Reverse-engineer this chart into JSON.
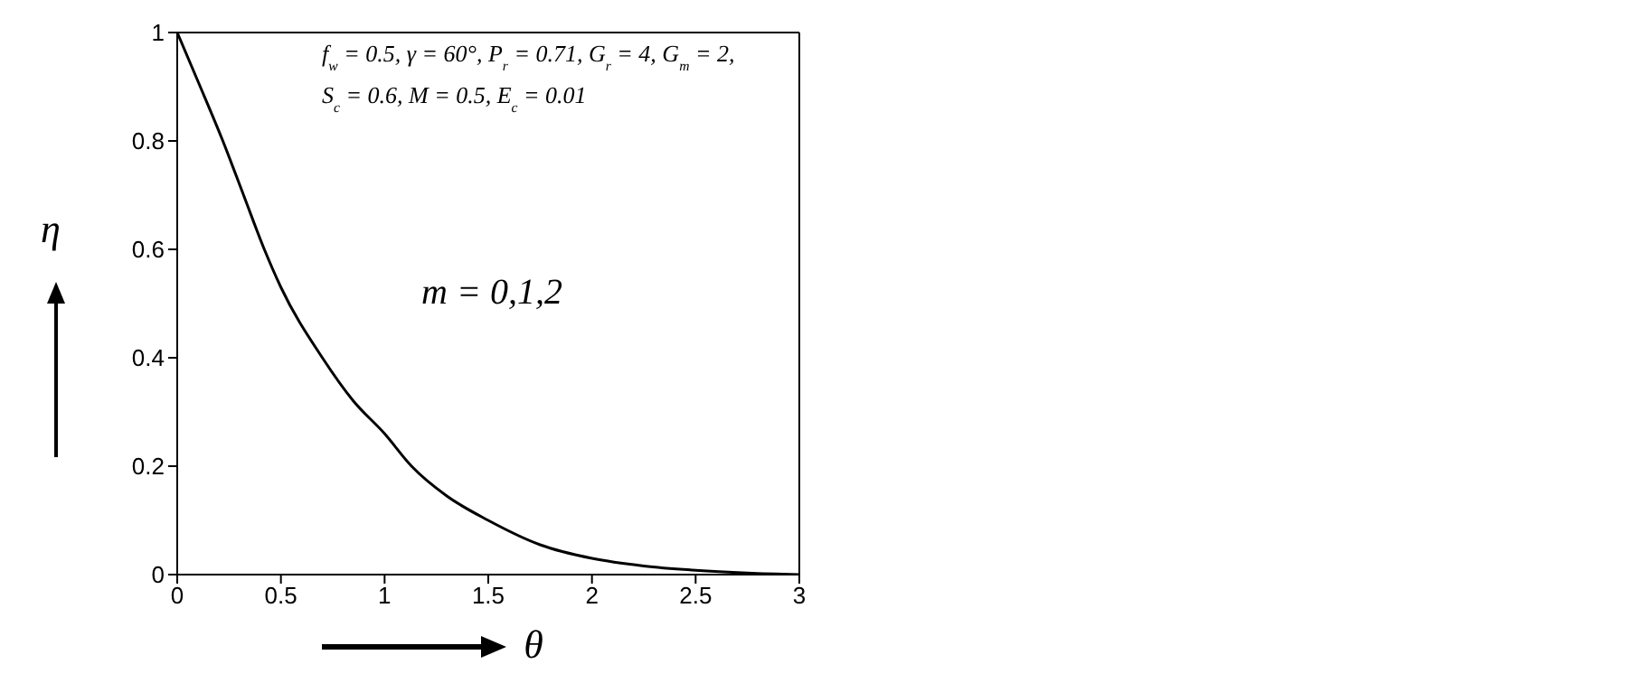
{
  "chart_data": {
    "type": "line",
    "xlabel": "θ",
    "ylabel": "η",
    "x": [
      0,
      0.1,
      0.22,
      0.32,
      0.42,
      0.5,
      0.7,
      0.85,
      1,
      1.13,
      1.3,
      1.5,
      1.75,
      2,
      2.25,
      2.5,
      2.75,
      3
    ],
    "series": [
      {
        "color": "#000000",
        "values": [
          1,
          0.91,
          0.8,
          0.7,
          0.6,
          0.53,
          0.4,
          0.32,
          0.26,
          0.2,
          0.145,
          0.1,
          0.055,
          0.03,
          0.016,
          0.008,
          0.003,
          0
        ]
      }
    ],
    "xlim": [
      0,
      3
    ],
    "xticks": [
      0,
      0.5,
      1,
      1.5,
      2,
      2.5,
      3
    ],
    "ylim": [
      0,
      1
    ],
    "yticks": [
      0,
      0.2,
      0.4,
      0.6,
      0.8,
      1
    ],
    "marker": "none",
    "line_style": "solid",
    "annotations": [
      "f$_{w}$ = 0.5, γ = 60°, P$_{r}$ = 0.71, G$_{r}$ = 4, G$_{m}$ = 2,",
      "S$_{c}$ = 0.6, M = 0.5, E$_{c}$ = 0.01",
      "m = 0,1,2"
    ]
  }
}
